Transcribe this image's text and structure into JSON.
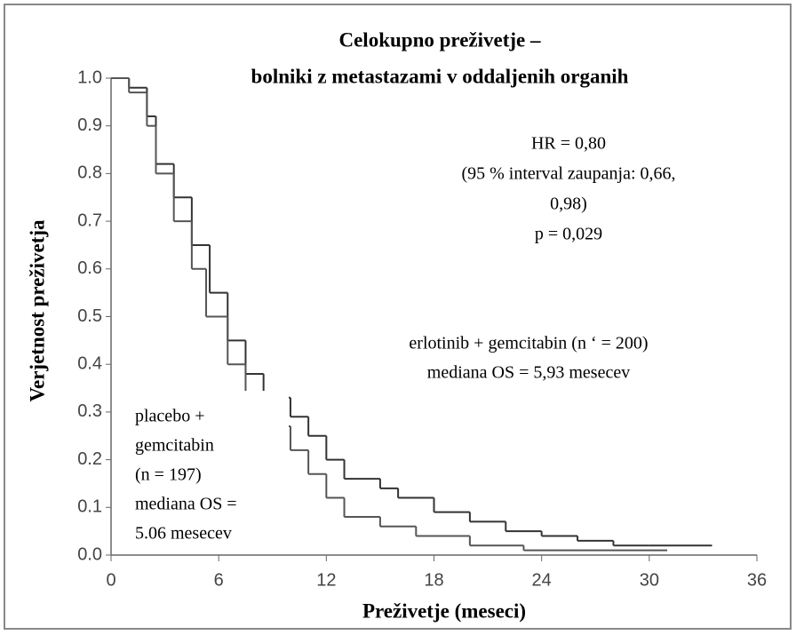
{
  "chart_data": {
    "type": "step",
    "title_lines": [
      "Celokupno preživetje –",
      "bolniki z metastazami v oddaljenih organih"
    ],
    "x_label": "Preživetje (meseci)",
    "y_label": "Verjetnost preživetja",
    "xlim": [
      0,
      36
    ],
    "xticks": [
      0,
      6,
      12,
      18,
      24,
      30,
      36
    ],
    "ylim": [
      0,
      1
    ],
    "yticks": [
      {
        "value": 0,
        "label": "0.0"
      },
      0.1,
      0.2,
      0.3,
      0.4,
      0.5,
      0.6,
      0.7,
      0.8,
      0.9,
      {
        "value": 1,
        "label": "1.0"
      }
    ],
    "series": [
      {
        "color": "#333333",
        "x": [
          0,
          1,
          2,
          2.5,
          3.5,
          4.5,
          5.5,
          6.5,
          7.5,
          8.5,
          10,
          11,
          12,
          13,
          15,
          16,
          18,
          20,
          22,
          24,
          26,
          28,
          30,
          33.5
        ],
        "values": [
          1.0,
          0.98,
          0.92,
          0.82,
          0.75,
          0.65,
          0.55,
          0.45,
          0.38,
          0.33,
          0.29,
          0.25,
          0.2,
          0.16,
          0.14,
          0.12,
          0.09,
          0.07,
          0.05,
          0.04,
          0.03,
          0.02,
          0.02,
          0.02
        ]
      },
      {
        "color": "#555555",
        "x": [
          0,
          1,
          2,
          2.5,
          3.5,
          4.5,
          5.3,
          6.5,
          7.5,
          8.5,
          10,
          11,
          12,
          13,
          15,
          17,
          20,
          23,
          26,
          31
        ],
        "values": [
          1.0,
          0.97,
          0.9,
          0.8,
          0.7,
          0.6,
          0.5,
          0.4,
          0.33,
          0.27,
          0.22,
          0.17,
          0.12,
          0.08,
          0.06,
          0.04,
          0.02,
          0.01,
          0.01,
          0.01
        ]
      }
    ],
    "annotations": [
      {
        "lines": [
          "HR = 0,80",
          "(95 % interval zaupanja: 0,66,",
          "0,98)",
          "p = 0,029"
        ]
      },
      {
        "lines": [
          "erlotinib + gemcitabin (n ‘ = 200)",
          "mediana OS = 5,93 mesecev"
        ]
      },
      {
        "lines": [
          "placebo +",
          "gemcitabin",
          "(n = 197)",
          "mediana OS =",
          "5.06 mesecev"
        ]
      }
    ]
  }
}
